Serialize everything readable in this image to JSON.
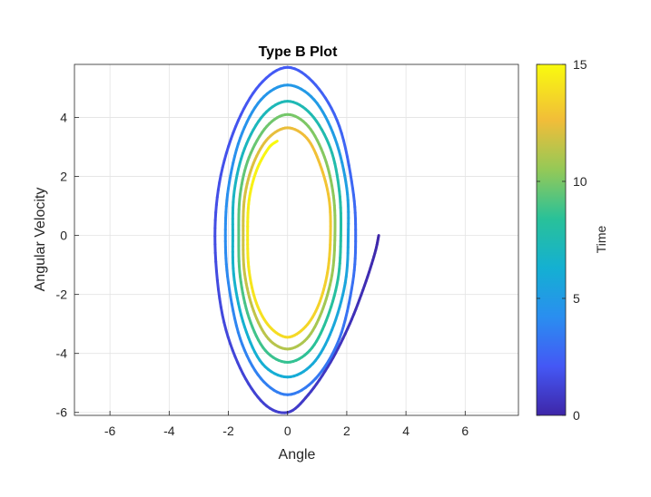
{
  "chart_data": {
    "type": "line",
    "title": "Type B Plot",
    "xlabel": "Angle",
    "ylabel": "Angular Velocity",
    "xlim": [
      -7.2,
      7.8
    ],
    "ylim": [
      -6.1,
      5.8
    ],
    "xticks": [
      -6,
      -4,
      -2,
      0,
      2,
      4,
      6
    ],
    "yticks": [
      -6,
      -4,
      -2,
      0,
      2,
      4
    ],
    "grid": true,
    "colorbar": {
      "label": "Time",
      "range": [
        0,
        15
      ],
      "ticks": [
        0,
        5,
        10,
        15
      ],
      "colormap": "parula"
    },
    "series": [
      {
        "color_by": "time",
        "t_range": [
          0,
          15
        ],
        "points": [
          [
            3.08,
            0.0
          ],
          [
            2.95,
            -0.6
          ],
          [
            2.6,
            -1.7
          ],
          [
            2.1,
            -3.0
          ],
          [
            1.45,
            -4.3
          ],
          [
            0.7,
            -5.4
          ],
          [
            0.0,
            -6.0
          ],
          [
            -0.8,
            -5.7
          ],
          [
            -1.6,
            -4.5
          ],
          [
            -2.2,
            -2.7
          ],
          [
            -2.45,
            -0.3
          ],
          [
            -2.3,
            1.8
          ],
          [
            -1.75,
            3.7
          ],
          [
            -0.95,
            5.1
          ],
          [
            0.0,
            5.7
          ],
          [
            0.95,
            5.1
          ],
          [
            1.75,
            3.7
          ],
          [
            2.2,
            1.6
          ],
          [
            2.3,
            0.0
          ],
          [
            2.2,
            -1.6
          ],
          [
            1.75,
            -3.5
          ],
          [
            0.95,
            -4.85
          ],
          [
            0.0,
            -5.4
          ],
          [
            -0.9,
            -4.85
          ],
          [
            -1.6,
            -3.5
          ],
          [
            -2.0,
            -1.6
          ],
          [
            -2.1,
            0.0
          ],
          [
            -2.0,
            1.6
          ],
          [
            -1.6,
            3.3
          ],
          [
            -0.9,
            4.6
          ],
          [
            0.0,
            5.1
          ],
          [
            0.9,
            4.6
          ],
          [
            1.6,
            3.3
          ],
          [
            2.0,
            1.6
          ],
          [
            2.05,
            0.0
          ],
          [
            1.95,
            -1.6
          ],
          [
            1.5,
            -3.2
          ],
          [
            0.85,
            -4.35
          ],
          [
            0.0,
            -4.8
          ],
          [
            -0.85,
            -4.35
          ],
          [
            -1.45,
            -3.1
          ],
          [
            -1.8,
            -1.5
          ],
          [
            -1.85,
            0.0
          ],
          [
            -1.8,
            1.5
          ],
          [
            -1.45,
            2.95
          ],
          [
            -0.8,
            4.1
          ],
          [
            0.0,
            4.55
          ],
          [
            0.8,
            4.1
          ],
          [
            1.45,
            2.95
          ],
          [
            1.75,
            1.5
          ],
          [
            1.8,
            0.0
          ],
          [
            1.7,
            -1.5
          ],
          [
            1.3,
            -2.9
          ],
          [
            0.75,
            -3.9
          ],
          [
            0.0,
            -4.3
          ],
          [
            -0.75,
            -3.9
          ],
          [
            -1.3,
            -2.8
          ],
          [
            -1.6,
            -1.4
          ],
          [
            -1.65,
            0.0
          ],
          [
            -1.6,
            1.4
          ],
          [
            -1.3,
            2.65
          ],
          [
            -0.7,
            3.7
          ],
          [
            0.0,
            4.1
          ],
          [
            0.7,
            3.7
          ],
          [
            1.25,
            2.65
          ],
          [
            1.55,
            1.35
          ],
          [
            1.6,
            0.0
          ],
          [
            1.5,
            -1.35
          ],
          [
            1.15,
            -2.6
          ],
          [
            0.65,
            -3.5
          ],
          [
            0.0,
            -3.85
          ],
          [
            -0.65,
            -3.5
          ],
          [
            -1.15,
            -2.55
          ],
          [
            -1.45,
            -1.3
          ],
          [
            -1.5,
            0.0
          ],
          [
            -1.45,
            1.3
          ],
          [
            -1.15,
            2.45
          ],
          [
            -0.65,
            3.3
          ],
          [
            0.0,
            3.65
          ],
          [
            0.65,
            3.3
          ],
          [
            1.1,
            2.4
          ],
          [
            1.4,
            1.25
          ],
          [
            1.45,
            0.0
          ],
          [
            1.35,
            -1.25
          ],
          [
            1.05,
            -2.35
          ],
          [
            0.6,
            -3.1
          ],
          [
            0.0,
            -3.45
          ],
          [
            -0.6,
            -3.1
          ],
          [
            -1.05,
            -2.3
          ],
          [
            -1.3,
            -1.2
          ],
          [
            -1.35,
            0.0
          ],
          [
            -1.3,
            1.2
          ],
          [
            -1.05,
            2.2
          ],
          [
            -0.65,
            2.95
          ],
          [
            -0.35,
            3.2
          ]
        ]
      }
    ]
  }
}
